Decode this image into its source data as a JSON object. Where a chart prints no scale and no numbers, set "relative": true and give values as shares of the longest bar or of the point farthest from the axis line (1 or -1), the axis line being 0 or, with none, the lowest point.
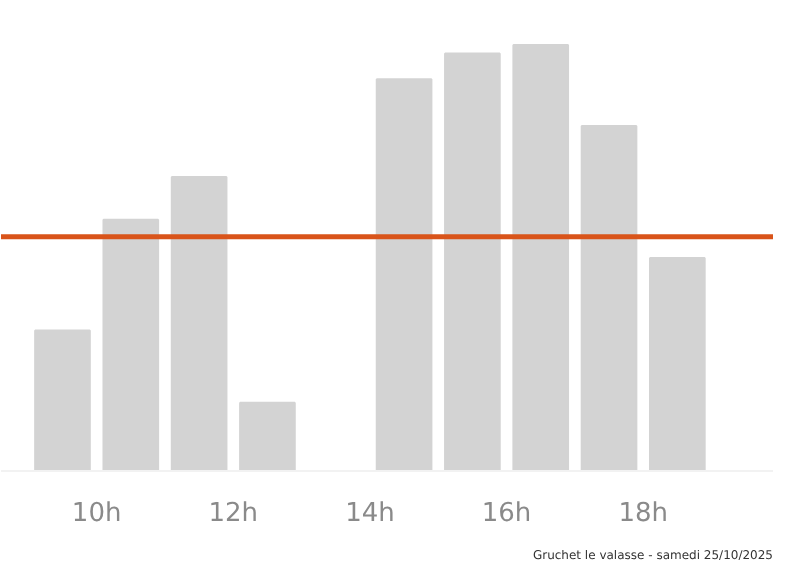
{
  "chart_data": {
    "type": "bar",
    "relative": true,
    "x": [
      9.5,
      10.5,
      11.5,
      12.5,
      13.5,
      14.5,
      15.5,
      16.5,
      17.5,
      18.5
    ],
    "values": [
      0.33,
      0.59,
      0.69,
      0.16,
      null,
      0.92,
      0.98,
      1,
      0.81,
      0.5
    ],
    "color": "#d3d3d3",
    "xlim": [
      8.6,
      19.9
    ],
    "xticks": [
      {
        "value": 10,
        "label": "10h"
      },
      {
        "value": 12,
        "label": "12h"
      },
      {
        "value": 14,
        "label": "14h"
      },
      {
        "value": 16,
        "label": "16h"
      },
      {
        "value": 18,
        "label": "18h"
      }
    ],
    "ref_lines": [
      {
        "axis": "y",
        "value": 0.55,
        "label": null,
        "color": "#d9541a"
      }
    ],
    "grid": false,
    "annotations": [
      "Gruchet le valasse - samedi 25/10/2025"
    ]
  }
}
